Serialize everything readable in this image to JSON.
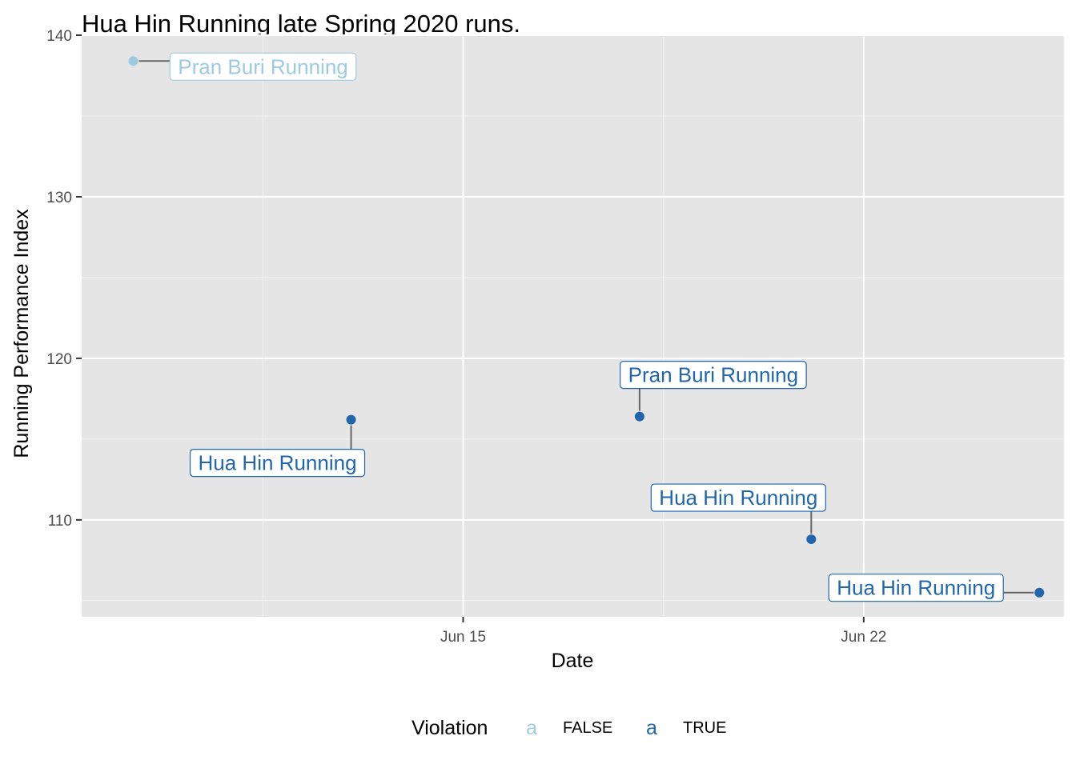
{
  "chart_data": {
    "type": "scatter",
    "title": "Hua Hin Running late Spring 2020 runs.",
    "xlabel": "Date",
    "ylabel": "Running Performance Index",
    "x_ticks": [
      "2020-06-15",
      "2020-06-22"
    ],
    "x_tick_labels": [
      "Jun 15",
      "Jun 22"
    ],
    "y_ticks": [
      110,
      120,
      130,
      140
    ],
    "y_tick_labels": [
      "110",
      "120",
      "130",
      "140"
    ],
    "xlim": [
      "2020-06-08 08:00",
      "2020-06-25 12:00"
    ],
    "ylim": [
      104,
      140
    ],
    "grid": true,
    "legend": {
      "title": "Violation",
      "placement": "bottom",
      "key_glyph": "a",
      "entries": [
        {
          "label": "FALSE",
          "color": "#9ecae1"
        },
        {
          "label": "TRUE",
          "color": "#2166ac"
        }
      ]
    },
    "points": [
      {
        "date": "2020-06-09 05:40",
        "y": 138.4,
        "violation": "FALSE",
        "label": "Pran Buri Running"
      },
      {
        "date": "2020-06-13 01:00",
        "y": 116.2,
        "violation": "TRUE",
        "label": "Hua Hin Running"
      },
      {
        "date": "2020-06-18 02:00",
        "y": 116.4,
        "violation": "TRUE",
        "label": "Pran Buri Running"
      },
      {
        "date": "2020-06-21 02:00",
        "y": 108.8,
        "violation": "TRUE",
        "label": "Hua Hin Running"
      },
      {
        "date": "2020-06-25 01:40",
        "y": 105.5,
        "violation": "TRUE",
        "label": "Hua Hin Running"
      }
    ]
  }
}
